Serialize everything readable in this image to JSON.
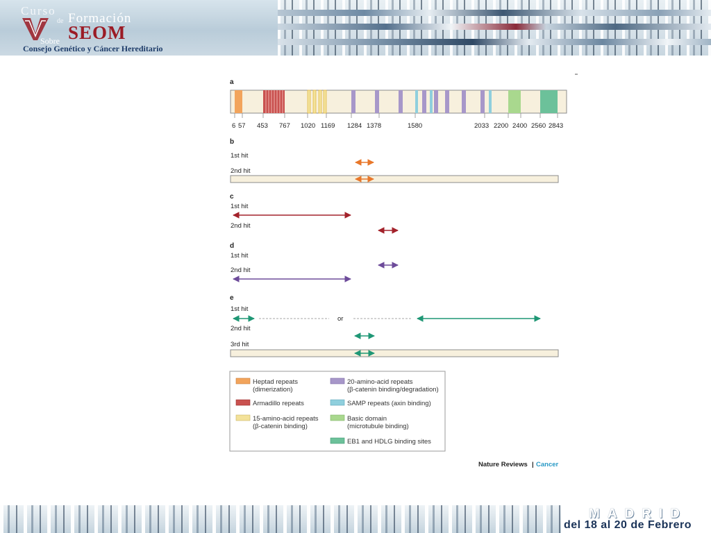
{
  "header": {
    "logo": {
      "curso": "Curso",
      "de": "de",
      "formacion": "Formación",
      "roman_numeral": "V",
      "seom": "SEOM",
      "sobre": "Sobre",
      "subtitle": "Consejo Genético y Cáncer Hereditario"
    }
  },
  "figure": {
    "panel_labels": [
      "a",
      "b",
      "c",
      "d",
      "e"
    ],
    "protein_ticks": [
      "6",
      "57",
      "453",
      "767",
      "1020",
      "1169",
      "1284",
      "1378",
      "1580",
      "2033",
      "2200",
      "2400",
      "2560",
      "2843"
    ],
    "hit_labels": {
      "first": "1st hit",
      "second": "2nd hit",
      "third": "3rd hit"
    },
    "or_label": "or",
    "legend": [
      {
        "label_line1": "Heptad repeats",
        "label_line2": "(dimerization)",
        "color": "#f2a45c"
      },
      {
        "label_line1": "Armadillo repeats",
        "label_line2": "",
        "color": "#c9514f"
      },
      {
        "label_line1": "15-amino-acid repeats",
        "label_line2": "(β-catenin binding)",
        "color": "#f3e29a"
      },
      {
        "label_line1": "20-amino-acid repeats",
        "label_line2": "(β-catenin binding/degradation)",
        "color": "#a797c9"
      },
      {
        "label_line1": "SAMP repeats (axin binding)",
        "label_line2": "",
        "color": "#8fcfdd"
      },
      {
        "label_line1": "Basic domain",
        "label_line2": "(microtubule binding)",
        "color": "#a9d88e"
      },
      {
        "label_line1": "EB1 and HDLG binding sites",
        "label_line2": "",
        "color": "#6cc19a"
      }
    ],
    "credit": {
      "journal": "Nature Reviews",
      "separator": "|",
      "section": "Cancer"
    },
    "colors": {
      "protein_bar": "#f7f0dd",
      "orange_arrow": "#e8772a",
      "red_arrow": "#a3222b",
      "purple_arrow": "#6d4b9a",
      "green_arrow": "#1f9775"
    }
  },
  "footer": {
    "city": "MADRID",
    "dates": "del 18 al 20 de Febrero"
  }
}
